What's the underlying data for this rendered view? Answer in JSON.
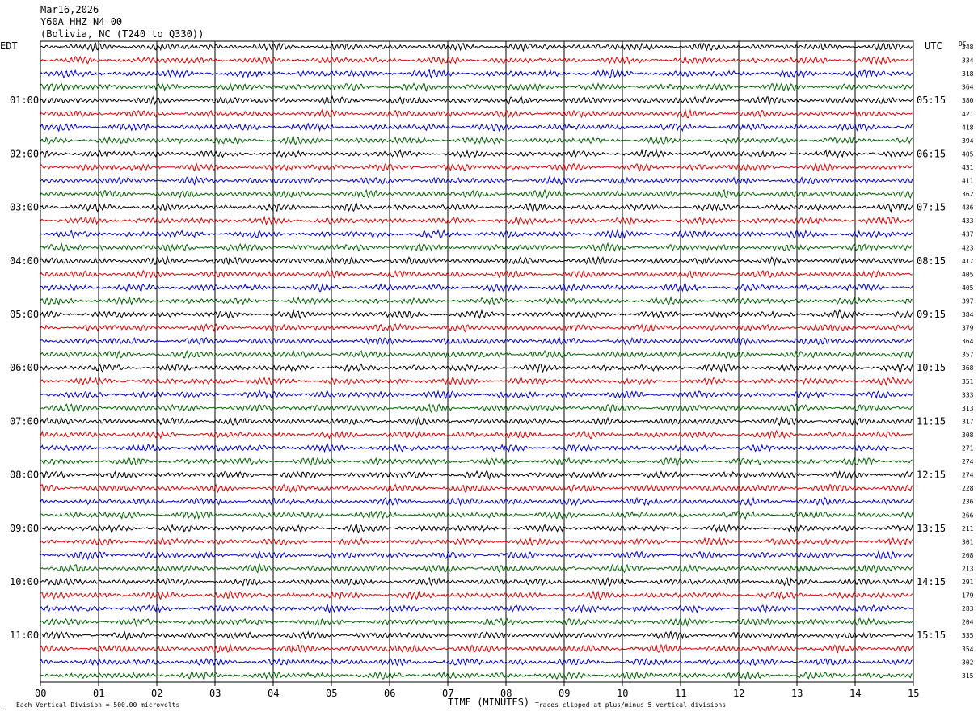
{
  "header": {
    "date": "Mar16,2026",
    "station": "Y60A HHZ N4 00",
    "location": "(Bolivia, NC (T240 to Q330))"
  },
  "chart_data": {
    "type": "line",
    "title": "Mar16,2026",
    "left_timezone": "EDT",
    "right_timezone": "UTC",
    "dc_label": "DC",
    "xlabel": "TIME (MINUTES)",
    "xlim": [
      0,
      15
    ],
    "x_ticks": [
      "00",
      "01",
      "02",
      "03",
      "04",
      "05",
      "06",
      "07",
      "08",
      "09",
      "10",
      "11",
      "12",
      "13",
      "14",
      "15"
    ],
    "traces_per_hour": 4,
    "trace_colors": [
      "#000000",
      "#dd0000",
      "#0000cc",
      "#006400"
    ],
    "grid": true,
    "left_hour_labels": [
      "01:00",
      "02:00",
      "03:00",
      "04:00",
      "05:00",
      "06:00",
      "07:00",
      "08:00",
      "09:00",
      "10:00",
      "11:00"
    ],
    "right_hour_labels": [
      "05:15",
      "06:15",
      "07:15",
      "08:15",
      "09:15",
      "10:15",
      "11:15",
      "12:15",
      "13:15",
      "14:15",
      "15:15"
    ],
    "dc_values": [
      348,
      334,
      318,
      364,
      380,
      421,
      418,
      394,
      405,
      431,
      411,
      362,
      436,
      433,
      437,
      423,
      417,
      405,
      405,
      397,
      384,
      379,
      364,
      357,
      368,
      351,
      333,
      313,
      317,
      308,
      271,
      274,
      274,
      228,
      236,
      266,
      211,
      301,
      208,
      213,
      291,
      179,
      283,
      204,
      335,
      354,
      302,
      315
    ],
    "scale_note": "Each Vertical Division =  500.00 microvolts",
    "clip_note": "Traces clipped at plus/minus 5 vertical divisions"
  },
  "colors": {
    "background": "#ffffff",
    "grid": "#000000"
  }
}
